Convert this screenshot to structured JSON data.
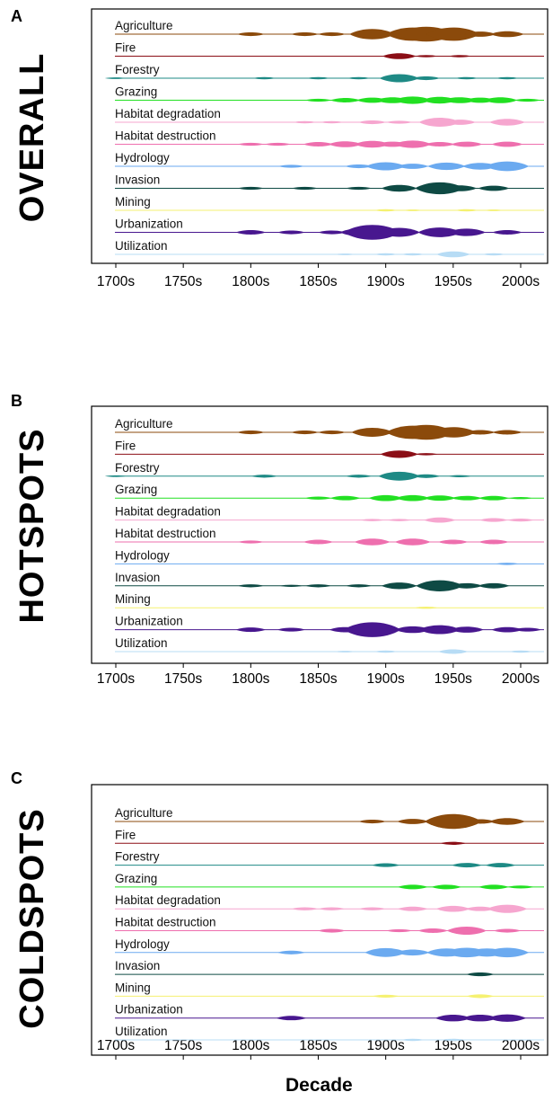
{
  "chart_data": [
    {
      "type": "area",
      "panel_label": "A",
      "title": "OVERALL",
      "xlabel": "",
      "x_ticks": [
        "1700s",
        "1750s",
        "1800s",
        "1850s",
        "1900s",
        "1950s",
        "2000s"
      ],
      "xlim": [
        1700,
        2010
      ],
      "series": [
        {
          "name": "Agriculture",
          "color": "#8B4A0B",
          "x": [
            1800,
            1840,
            1860,
            1890,
            1920,
            1930,
            1950,
            1970,
            1990
          ],
          "values": [
            0.25,
            0.25,
            0.25,
            0.7,
            0.9,
            1.0,
            0.9,
            0.35,
            0.4
          ]
        },
        {
          "name": "Fire",
          "color": "#8B0E16",
          "x": [
            1910,
            1930,
            1955
          ],
          "values": [
            0.4,
            0.15,
            0.15
          ]
        },
        {
          "name": "Forestry",
          "color": "#1E8A85",
          "x": [
            1700,
            1810,
            1850,
            1880,
            1910,
            1930,
            1960,
            1990
          ],
          "values": [
            0.1,
            0.15,
            0.15,
            0.15,
            0.55,
            0.25,
            0.15,
            0.15
          ]
        },
        {
          "name": "Grazing",
          "color": "#22E022",
          "x": [
            1850,
            1870,
            1890,
            1905,
            1920,
            1940,
            1955,
            1970,
            1985,
            2005
          ],
          "values": [
            0.2,
            0.3,
            0.35,
            0.4,
            0.5,
            0.45,
            0.4,
            0.35,
            0.4,
            0.2
          ]
        },
        {
          "name": "Habitat degradation",
          "color": "#F6A6CF",
          "x": [
            1840,
            1860,
            1890,
            1910,
            1940,
            1955,
            1990
          ],
          "values": [
            0.15,
            0.15,
            0.25,
            0.2,
            0.6,
            0.35,
            0.45
          ]
        },
        {
          "name": "Habitat destruction",
          "color": "#EE6FAE",
          "x": [
            1800,
            1820,
            1850,
            1870,
            1890,
            1905,
            1920,
            1940,
            1960,
            1990
          ],
          "values": [
            0.2,
            0.2,
            0.3,
            0.4,
            0.45,
            0.35,
            0.5,
            0.3,
            0.35,
            0.35
          ]
        },
        {
          "name": "Hydrology",
          "color": "#6BAAF0",
          "x": [
            1830,
            1880,
            1900,
            1920,
            1945,
            1970,
            1990
          ],
          "values": [
            0.2,
            0.25,
            0.55,
            0.35,
            0.5,
            0.45,
            0.65
          ]
        },
        {
          "name": "Invasion",
          "color": "#0E4A44",
          "x": [
            1800,
            1840,
            1880,
            1910,
            1940,
            1955,
            1980
          ],
          "values": [
            0.2,
            0.2,
            0.2,
            0.45,
            0.8,
            0.4,
            0.35
          ]
        },
        {
          "name": "Mining",
          "color": "#F5F171",
          "x": [
            1900,
            1920,
            1960,
            1980
          ],
          "values": [
            0.15,
            0.1,
            0.15,
            0.1
          ]
        },
        {
          "name": "Urbanization",
          "color": "#48178F",
          "x": [
            1800,
            1830,
            1860,
            1880,
            1890,
            1910,
            1940,
            1960,
            1990
          ],
          "values": [
            0.3,
            0.25,
            0.25,
            0.5,
            1.0,
            0.6,
            0.65,
            0.5,
            0.3
          ]
        },
        {
          "name": "Utilization",
          "color": "#B7DCF5",
          "x": [
            1870,
            1900,
            1920,
            1950,
            1980
          ],
          "values": [
            0.1,
            0.15,
            0.15,
            0.4,
            0.15
          ]
        }
      ]
    },
    {
      "type": "area",
      "panel_label": "B",
      "title": "HOTSPOTS",
      "xlabel": "",
      "x_ticks": [
        "1700s",
        "1750s",
        "1800s",
        "1850s",
        "1900s",
        "1950s",
        "2000s"
      ],
      "xlim": [
        1700,
        2010
      ],
      "series": [
        {
          "name": "Agriculture",
          "color": "#8B4A0B",
          "x": [
            1800,
            1840,
            1860,
            1890,
            1920,
            1930,
            1950,
            1970,
            1990
          ],
          "values": [
            0.25,
            0.25,
            0.25,
            0.6,
            0.9,
            1.0,
            0.7,
            0.3,
            0.3
          ]
        },
        {
          "name": "Fire",
          "color": "#8B0E16",
          "x": [
            1910,
            1930
          ],
          "values": [
            0.5,
            0.15
          ]
        },
        {
          "name": "Forestry",
          "color": "#1E8A85",
          "x": [
            1700,
            1810,
            1880,
            1910,
            1930,
            1955
          ],
          "values": [
            0.1,
            0.2,
            0.2,
            0.6,
            0.25,
            0.15
          ]
        },
        {
          "name": "Grazing",
          "color": "#22E022",
          "x": [
            1850,
            1870,
            1900,
            1920,
            1940,
            1960,
            1980,
            2000
          ],
          "values": [
            0.2,
            0.3,
            0.4,
            0.4,
            0.35,
            0.3,
            0.3,
            0.15
          ]
        },
        {
          "name": "Habitat degradation",
          "color": "#F6A6CF",
          "x": [
            1890,
            1910,
            1940,
            1980,
            2000
          ],
          "values": [
            0.15,
            0.15,
            0.35,
            0.25,
            0.2
          ]
        },
        {
          "name": "Habitat destruction",
          "color": "#EE6FAE",
          "x": [
            1800,
            1850,
            1890,
            1920,
            1950,
            1980
          ],
          "values": [
            0.2,
            0.3,
            0.45,
            0.45,
            0.3,
            0.3
          ]
        },
        {
          "name": "Hydrology",
          "color": "#6BAAF0",
          "x": [
            1990
          ],
          "values": [
            0.15
          ]
        },
        {
          "name": "Invasion",
          "color": "#0E4A44",
          "x": [
            1800,
            1830,
            1850,
            1880,
            1910,
            1940,
            1960,
            1980
          ],
          "values": [
            0.2,
            0.15,
            0.2,
            0.2,
            0.45,
            0.75,
            0.35,
            0.35
          ]
        },
        {
          "name": "Mining",
          "color": "#F5F171",
          "x": [
            1930
          ],
          "values": [
            0.15
          ]
        },
        {
          "name": "Urbanization",
          "color": "#48178F",
          "x": [
            1800,
            1830,
            1870,
            1890,
            1920,
            1940,
            1960,
            1990,
            2005
          ],
          "values": [
            0.3,
            0.25,
            0.35,
            1.0,
            0.45,
            0.6,
            0.4,
            0.35,
            0.25
          ]
        },
        {
          "name": "Utilization",
          "color": "#B7DCF5",
          "x": [
            1870,
            1900,
            1950,
            2000
          ],
          "values": [
            0.1,
            0.15,
            0.3,
            0.15
          ]
        }
      ]
    },
    {
      "type": "area",
      "panel_label": "C",
      "title": "COLDSPOTS",
      "xlabel": "Decade",
      "x_ticks": [
        "1700s",
        "1750s",
        "1800s",
        "1850s",
        "1900s",
        "1950s",
        "2000s"
      ],
      "xlim": [
        1700,
        2010
      ],
      "series": [
        {
          "name": "Agriculture",
          "color": "#8B4A0B",
          "x": [
            1890,
            1920,
            1950,
            1970,
            1990
          ],
          "values": [
            0.25,
            0.35,
            1.0,
            0.3,
            0.45
          ]
        },
        {
          "name": "Fire",
          "color": "#8B0E16",
          "x": [
            1950
          ],
          "values": [
            0.2
          ]
        },
        {
          "name": "Forestry",
          "color": "#1E8A85",
          "x": [
            1900,
            1960,
            1985
          ],
          "values": [
            0.25,
            0.3,
            0.3
          ]
        },
        {
          "name": "Grazing",
          "color": "#22E022",
          "x": [
            1920,
            1945,
            1980,
            2000
          ],
          "values": [
            0.3,
            0.3,
            0.3,
            0.2
          ]
        },
        {
          "name": "Habitat degradation",
          "color": "#F6A6CF",
          "x": [
            1840,
            1860,
            1890,
            1920,
            1950,
            1970,
            1990
          ],
          "values": [
            0.2,
            0.2,
            0.2,
            0.3,
            0.4,
            0.3,
            0.55
          ]
        },
        {
          "name": "Habitat destruction",
          "color": "#EE6FAE",
          "x": [
            1860,
            1910,
            1935,
            1960,
            1990
          ],
          "values": [
            0.25,
            0.2,
            0.3,
            0.55,
            0.25
          ]
        },
        {
          "name": "Hydrology",
          "color": "#6BAAF0",
          "x": [
            1830,
            1900,
            1920,
            1945,
            1960,
            1975,
            1990
          ],
          "values": [
            0.25,
            0.6,
            0.4,
            0.55,
            0.65,
            0.55,
            0.65
          ]
        },
        {
          "name": "Invasion",
          "color": "#0E4A44",
          "x": [
            1970
          ],
          "values": [
            0.25
          ]
        },
        {
          "name": "Mining",
          "color": "#F5F171",
          "x": [
            1900,
            1970
          ],
          "values": [
            0.2,
            0.25
          ]
        },
        {
          "name": "Urbanization",
          "color": "#48178F",
          "x": [
            1830,
            1950,
            1970,
            1990
          ],
          "values": [
            0.3,
            0.45,
            0.45,
            0.5
          ]
        },
        {
          "name": "Utilization",
          "color": "#B7DCF5",
          "x": [
            1920,
            1950
          ],
          "values": [
            0.15,
            0.15
          ]
        }
      ]
    }
  ]
}
